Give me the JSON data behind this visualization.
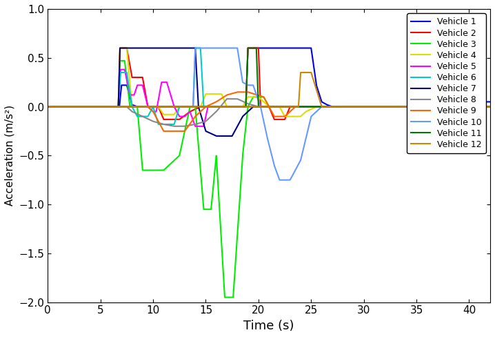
{
  "xlabel": "Time (s)",
  "ylabel": "Acceleration (m/s²)",
  "xlim": [
    0,
    42
  ],
  "ylim": [
    -2,
    1
  ],
  "yticks": [
    -2,
    -1.5,
    -1,
    -0.5,
    0,
    0.5,
    1
  ],
  "xticks": [
    0,
    5,
    10,
    15,
    20,
    25,
    30,
    35,
    40
  ],
  "vehicles": [
    {
      "label": "Vehicle 1",
      "color": "#0000EE"
    },
    {
      "label": "Vehicle 2",
      "color": "#FF0000"
    },
    {
      "label": "Vehicle 3",
      "color": "#00EE00"
    },
    {
      "label": "Vehicle 4",
      "color": "#DDDD00"
    },
    {
      "label": "Vehicle 5",
      "color": "#FF00FF"
    },
    {
      "label": "Vehicle 6",
      "color": "#00CCCC"
    },
    {
      "label": "Vehicle 7",
      "color": "#000080"
    },
    {
      "label": "Vehicle 8",
      "color": "#888888"
    },
    {
      "label": "Vehicle 9",
      "color": "#FF6600"
    },
    {
      "label": "Vehicle 10",
      "color": "#6699FF"
    },
    {
      "label": "Vehicle 11",
      "color": "#007700"
    },
    {
      "label": "Vehicle 12",
      "color": "#CC8800"
    }
  ]
}
